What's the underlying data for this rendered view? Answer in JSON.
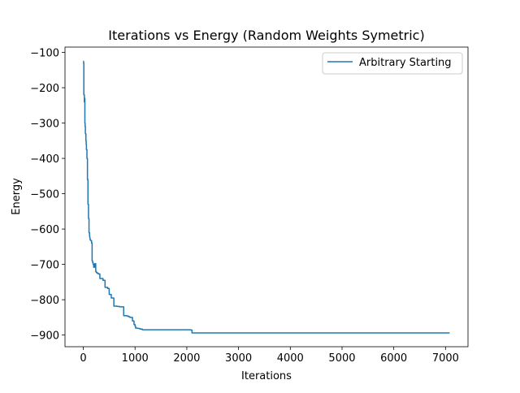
{
  "chart_data": {
    "type": "line",
    "title": "Iterations vs Energy (Random Weights Symetric)",
    "xlabel": "Iterations",
    "ylabel": "Energy",
    "xlim": [
      -354,
      7434
    ],
    "ylim": [
      -933,
      -85
    ],
    "xticks": [
      0,
      1000,
      2000,
      3000,
      4000,
      5000,
      6000,
      7000
    ],
    "yticks": [
      -100,
      -200,
      -300,
      -400,
      -500,
      -600,
      -700,
      -800,
      -900
    ],
    "xtick_labels": [
      "0",
      "1000",
      "2000",
      "3000",
      "4000",
      "5000",
      "6000",
      "7000"
    ],
    "ytick_labels": [
      "−100",
      "−200",
      "−300",
      "−400",
      "−500",
      "−600",
      "−700",
      "−800",
      "−900"
    ],
    "grid": false,
    "legend_position": "top-right",
    "colors": {
      "series": "#1f77b4",
      "axes": "#000000",
      "legend_border": "#cccccc"
    },
    "series": [
      {
        "name": "Arbitrary Starting",
        "x": [
          0,
          5,
          10,
          20,
          25,
          30,
          35,
          40,
          50,
          55,
          60,
          70,
          80,
          90,
          100,
          110,
          120,
          125,
          130,
          140,
          150,
          160,
          170,
          180,
          190,
          200,
          220,
          240,
          250,
          270,
          290,
          320,
          380,
          420,
          470,
          500,
          540,
          590,
          650,
          700,
          780,
          840,
          870,
          900,
          950,
          980,
          1000,
          1010,
          1040,
          1080,
          1100,
          1140,
          1500,
          2080,
          2100,
          7080
        ],
        "y": [
          -125,
          -130,
          -220,
          -240,
          -230,
          -300,
          -310,
          -330,
          -350,
          -360,
          -375,
          -400,
          -460,
          -530,
          -570,
          -610,
          -620,
          -625,
          -630,
          -632,
          -633,
          -640,
          -690,
          -695,
          -700,
          -708,
          -698,
          -720,
          -723,
          -725,
          -727,
          -740,
          -745,
          -765,
          -768,
          -785,
          -795,
          -818,
          -819,
          -820,
          -845,
          -846,
          -848,
          -850,
          -860,
          -870,
          -875,
          -880,
          -881,
          -882,
          -883,
          -885,
          -885,
          -886,
          -894,
          -894
        ]
      }
    ]
  }
}
